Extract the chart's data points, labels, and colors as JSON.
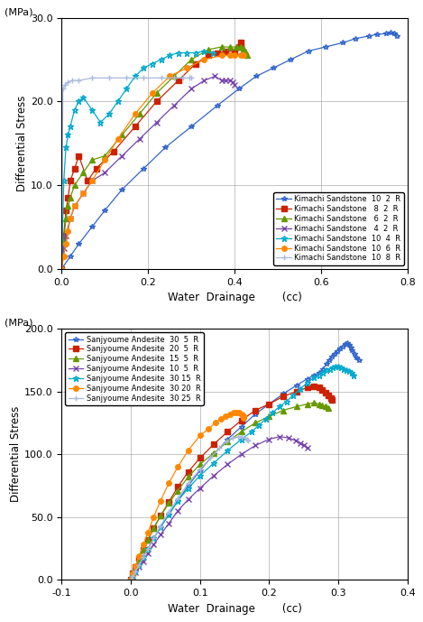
{
  "plot1": {
    "xlabel": "Water  Drainage        (cc)",
    "ylabel": "Differential Stress",
    "ylabel2": "(MPa)",
    "xlim": [
      0.0,
      0.8
    ],
    "ylim": [
      0.0,
      30.0
    ],
    "xticks": [
      0.0,
      0.2,
      0.4,
      0.6,
      0.8
    ],
    "yticks": [
      0.0,
      10.0,
      20.0,
      30.0
    ],
    "series": [
      {
        "label": "Kimachi Sandstone  10  2  R",
        "color": "#3366CC",
        "marker": "*",
        "markersize": 4,
        "linewidth": 0.9,
        "x": [
          0.0,
          0.02,
          0.04,
          0.07,
          0.1,
          0.14,
          0.19,
          0.24,
          0.3,
          0.36,
          0.41,
          0.45,
          0.49,
          0.53,
          0.57,
          0.61,
          0.65,
          0.68,
          0.71,
          0.73,
          0.75,
          0.76,
          0.77,
          0.775
        ],
        "y": [
          0.0,
          1.5,
          3.0,
          5.0,
          7.0,
          9.5,
          12.0,
          14.5,
          17.0,
          19.5,
          21.5,
          23.0,
          24.0,
          25.0,
          26.0,
          26.5,
          27.0,
          27.5,
          27.8,
          28.0,
          28.1,
          28.2,
          28.1,
          27.8
        ]
      },
      {
        "label": "Kimachi Sandstone   8  2  R",
        "color": "#CC2200",
        "marker": "s",
        "markersize": 4,
        "linewidth": 0.9,
        "x": [
          0.0,
          0.005,
          0.01,
          0.015,
          0.02,
          0.03,
          0.04,
          0.06,
          0.08,
          0.12,
          0.17,
          0.22,
          0.27,
          0.31,
          0.34,
          0.36,
          0.38,
          0.4,
          0.41,
          0.415,
          0.415
        ],
        "y": [
          0.0,
          4.0,
          7.0,
          8.5,
          10.5,
          12.0,
          13.5,
          10.5,
          12.0,
          14.0,
          17.0,
          20.0,
          22.5,
          24.5,
          25.5,
          25.8,
          26.0,
          26.0,
          26.5,
          27.0,
          26.5
        ]
      },
      {
        "label": "Kimachi Sandstone   6  2  R",
        "color": "#669900",
        "marker": "^",
        "markersize": 4,
        "linewidth": 0.9,
        "x": [
          0.0,
          0.005,
          0.01,
          0.015,
          0.02,
          0.03,
          0.05,
          0.07,
          0.1,
          0.14,
          0.18,
          0.22,
          0.26,
          0.3,
          0.34,
          0.37,
          0.39,
          0.405,
          0.415,
          0.42,
          0.425,
          0.43
        ],
        "y": [
          0.0,
          3.5,
          6.0,
          7.5,
          8.5,
          10.0,
          11.5,
          13.0,
          13.5,
          16.0,
          18.5,
          21.0,
          23.0,
          25.0,
          26.2,
          26.5,
          26.5,
          26.5,
          26.5,
          26.3,
          26.0,
          25.5
        ]
      },
      {
        "label": "Kimachi Sandstone   4  2  R",
        "color": "#7744AA",
        "marker": "x",
        "markersize": 5,
        "linewidth": 0.9,
        "x": [
          0.0,
          0.005,
          0.01,
          0.02,
          0.03,
          0.05,
          0.07,
          0.1,
          0.14,
          0.18,
          0.22,
          0.26,
          0.3,
          0.33,
          0.355,
          0.37,
          0.38,
          0.39,
          0.395,
          0.4
        ],
        "y": [
          0.0,
          2.5,
          4.0,
          6.0,
          7.5,
          9.0,
          10.5,
          11.5,
          13.5,
          15.5,
          17.5,
          19.5,
          21.5,
          22.5,
          23.0,
          22.5,
          22.5,
          22.5,
          22.3,
          22.0
        ]
      },
      {
        "label": "Kimachi Sandstone  10  4  R",
        "color": "#00AACC",
        "marker": "*",
        "markersize": 5,
        "linewidth": 0.9,
        "x": [
          0.0,
          0.005,
          0.01,
          0.015,
          0.02,
          0.03,
          0.04,
          0.05,
          0.07,
          0.09,
          0.11,
          0.13,
          0.15,
          0.17,
          0.19,
          0.21,
          0.23,
          0.25,
          0.27,
          0.29,
          0.31,
          0.33,
          0.35
        ],
        "y": [
          0.0,
          10.5,
          14.5,
          16.0,
          17.0,
          19.0,
          20.0,
          20.5,
          19.0,
          17.5,
          18.5,
          20.0,
          21.5,
          23.0,
          24.0,
          24.5,
          25.0,
          25.5,
          25.8,
          25.8,
          25.8,
          26.0,
          25.8
        ]
      },
      {
        "label": "Kimachi Sandstone  10  6  R",
        "color": "#FF8800",
        "marker": "o",
        "markersize": 4,
        "linewidth": 0.9,
        "x": [
          0.0,
          0.005,
          0.01,
          0.015,
          0.02,
          0.03,
          0.05,
          0.07,
          0.1,
          0.13,
          0.17,
          0.21,
          0.25,
          0.29,
          0.33,
          0.37,
          0.39,
          0.4,
          0.415,
          0.42
        ],
        "y": [
          0.0,
          1.5,
          3.0,
          4.5,
          6.0,
          7.5,
          9.0,
          10.5,
          13.0,
          15.5,
          18.5,
          21.0,
          23.0,
          24.0,
          25.0,
          25.5,
          25.5,
          25.5,
          25.5,
          25.5
        ]
      },
      {
        "label": "Kimachi Sandstone  10  8  R",
        "color": "#AABBDD",
        "marker": "+",
        "markersize": 5,
        "linewidth": 0.9,
        "x": [
          0.0,
          0.003,
          0.008,
          0.015,
          0.025,
          0.04,
          0.07,
          0.11,
          0.15,
          0.19,
          0.23,
          0.26,
          0.28,
          0.295,
          0.3
        ],
        "y": [
          0.0,
          21.5,
          22.0,
          22.3,
          22.5,
          22.5,
          22.8,
          22.8,
          22.8,
          22.8,
          22.8,
          22.8,
          22.8,
          22.8,
          22.8
        ]
      }
    ]
  },
  "plot2": {
    "xlabel": "Water  Drainage        (cc)",
    "ylabel": "Differential Stress",
    "ylabel2": "(MPa)",
    "xlim": [
      -0.1,
      0.4
    ],
    "ylim": [
      0.0,
      200.0
    ],
    "xticks": [
      -0.1,
      0.0,
      0.1,
      0.2,
      0.3,
      0.4
    ],
    "yticks": [
      0.0,
      50.0,
      100.0,
      150.0,
      200.0
    ],
    "series": [
      {
        "label": "Sanjyoume Andesite  30  5  R",
        "color": "#3366CC",
        "marker": "*",
        "markersize": 4,
        "linewidth": 0.9,
        "x": [
          0.0,
          0.003,
          0.007,
          0.012,
          0.018,
          0.025,
          0.033,
          0.043,
          0.055,
          0.068,
          0.083,
          0.1,
          0.12,
          0.14,
          0.16,
          0.18,
          0.2,
          0.22,
          0.24,
          0.255,
          0.265,
          0.272,
          0.278,
          0.283,
          0.287,
          0.291,
          0.295,
          0.298,
          0.302,
          0.306,
          0.31,
          0.313,
          0.316,
          0.318,
          0.32,
          0.323,
          0.326,
          0.33
        ],
        "y": [
          0.0,
          3.0,
          7.0,
          12.0,
          18.0,
          25.0,
          33.0,
          42.0,
          52.0,
          63.0,
          75.0,
          87.0,
          100.0,
          112.0,
          122.0,
          132.0,
          140.0,
          148.0,
          155.0,
          160.0,
          163.0,
          165.0,
          168.0,
          172.0,
          175.0,
          178.0,
          180.0,
          182.0,
          184.0,
          186.0,
          188.0,
          188.5,
          187.0,
          185.0,
          183.0,
          180.0,
          177.0,
          175.0
        ]
      },
      {
        "label": "Sanjyoume Andesite  20  5  R",
        "color": "#CC2200",
        "marker": "s",
        "markersize": 4,
        "linewidth": 0.9,
        "x": [
          0.0,
          0.003,
          0.007,
          0.012,
          0.018,
          0.025,
          0.033,
          0.043,
          0.055,
          0.068,
          0.083,
          0.1,
          0.12,
          0.14,
          0.16,
          0.18,
          0.2,
          0.22,
          0.24,
          0.255,
          0.265,
          0.272,
          0.277,
          0.282,
          0.286,
          0.289,
          0.291
        ],
        "y": [
          0.0,
          5.0,
          10.0,
          17.0,
          24.0,
          32.0,
          41.0,
          51.0,
          62.0,
          74.0,
          86.0,
          97.0,
          108.0,
          118.0,
          127.0,
          135.0,
          140.0,
          146.0,
          150.0,
          153.0,
          154.0,
          153.0,
          151.0,
          149.0,
          147.0,
          145.0,
          143.0
        ]
      },
      {
        "label": "Sanjyoume Andesite  15  5  R",
        "color": "#669900",
        "marker": "^",
        "markersize": 4,
        "linewidth": 0.9,
        "x": [
          0.0,
          0.003,
          0.007,
          0.012,
          0.018,
          0.025,
          0.033,
          0.043,
          0.055,
          0.068,
          0.083,
          0.1,
          0.12,
          0.14,
          0.16,
          0.18,
          0.2,
          0.22,
          0.24,
          0.255,
          0.265,
          0.272,
          0.277,
          0.282,
          0.286
        ],
        "y": [
          0.0,
          5.0,
          10.0,
          17.0,
          24.0,
          32.0,
          41.0,
          51.0,
          61.0,
          71.0,
          82.0,
          92.0,
          101.0,
          110.0,
          118.0,
          125.0,
          130.0,
          135.0,
          138.0,
          140.0,
          141.0,
          140.0,
          139.0,
          138.0,
          137.0
        ]
      },
      {
        "label": "Sanjyoume Andesite  10  5  R",
        "color": "#7744AA",
        "marker": "x",
        "markersize": 5,
        "linewidth": 0.9,
        "x": [
          0.0,
          0.003,
          0.007,
          0.012,
          0.018,
          0.025,
          0.033,
          0.043,
          0.055,
          0.068,
          0.083,
          0.1,
          0.12,
          0.14,
          0.16,
          0.18,
          0.2,
          0.215,
          0.228,
          0.238,
          0.245,
          0.25,
          0.255
        ],
        "y": [
          0.0,
          3.0,
          6.0,
          10.0,
          15.0,
          21.0,
          28.0,
          36.0,
          45.0,
          55.0,
          64.0,
          73.0,
          83.0,
          92.0,
          100.0,
          107.0,
          112.0,
          114.0,
          113.0,
          111.0,
          109.0,
          107.0,
          105.0
        ]
      },
      {
        "label": "Sanjyoume Andesite  30 15  R",
        "color": "#00AACC",
        "marker": "*",
        "markersize": 5,
        "linewidth": 0.9,
        "x": [
          0.0,
          0.003,
          0.007,
          0.012,
          0.018,
          0.025,
          0.033,
          0.043,
          0.055,
          0.068,
          0.083,
          0.1,
          0.12,
          0.14,
          0.16,
          0.175,
          0.185,
          0.195,
          0.205,
          0.215,
          0.225,
          0.235,
          0.245,
          0.255,
          0.265,
          0.272,
          0.278,
          0.283,
          0.288,
          0.292,
          0.296,
          0.3,
          0.304,
          0.308,
          0.312,
          0.316,
          0.319,
          0.322
        ],
        "y": [
          0.0,
          3.0,
          7.0,
          12.0,
          18.0,
          25.0,
          33.0,
          42.0,
          52.0,
          63.0,
          73.0,
          83.0,
          93.0,
          103.0,
          112.0,
          118.0,
          123.0,
          128.0,
          133.0,
          138.0,
          142.0,
          147.0,
          152.0,
          157.0,
          161.0,
          163.0,
          165.0,
          167.0,
          168.0,
          169.0,
          170.0,
          170.0,
          169.0,
          168.0,
          167.0,
          166.0,
          165.0,
          163.0
        ]
      },
      {
        "label": "Sanjyoume Andesite  30 20  R",
        "color": "#FF8800",
        "marker": "o",
        "markersize": 4,
        "linewidth": 0.9,
        "x": [
          0.0,
          0.003,
          0.007,
          0.012,
          0.018,
          0.025,
          0.033,
          0.043,
          0.055,
          0.068,
          0.083,
          0.1,
          0.112,
          0.122,
          0.13,
          0.137,
          0.143,
          0.148,
          0.153,
          0.157,
          0.16,
          0.162,
          0.163,
          0.163
        ],
        "y": [
          0.0,
          5.0,
          11.0,
          19.0,
          28.0,
          38.0,
          50.0,
          63.0,
          77.0,
          90.0,
          103.0,
          115.0,
          120.0,
          125.0,
          128.0,
          130.0,
          132.0,
          133.0,
          133.5,
          133.0,
          132.0,
          131.0,
          130.0,
          129.0
        ]
      },
      {
        "label": "Sanjyoume Andesite  30 25  R",
        "color": "#AABBDD",
        "marker": "+",
        "markersize": 5,
        "linewidth": 0.9,
        "x": [
          0.0,
          0.003,
          0.007,
          0.012,
          0.018,
          0.025,
          0.033,
          0.043,
          0.055,
          0.068,
          0.083,
          0.1,
          0.115,
          0.128,
          0.138,
          0.147,
          0.155,
          0.161,
          0.165,
          0.168,
          0.17
        ],
        "y": [
          0.0,
          3.0,
          7.0,
          12.0,
          18.0,
          25.0,
          33.0,
          43.0,
          54.0,
          65.0,
          77.0,
          88.0,
          97.0,
          105.0,
          110.0,
          113.0,
          114.0,
          114.0,
          113.0,
          112.0,
          111.0
        ]
      }
    ]
  },
  "fig_width": 4.69,
  "fig_height": 6.89,
  "dpi": 100
}
